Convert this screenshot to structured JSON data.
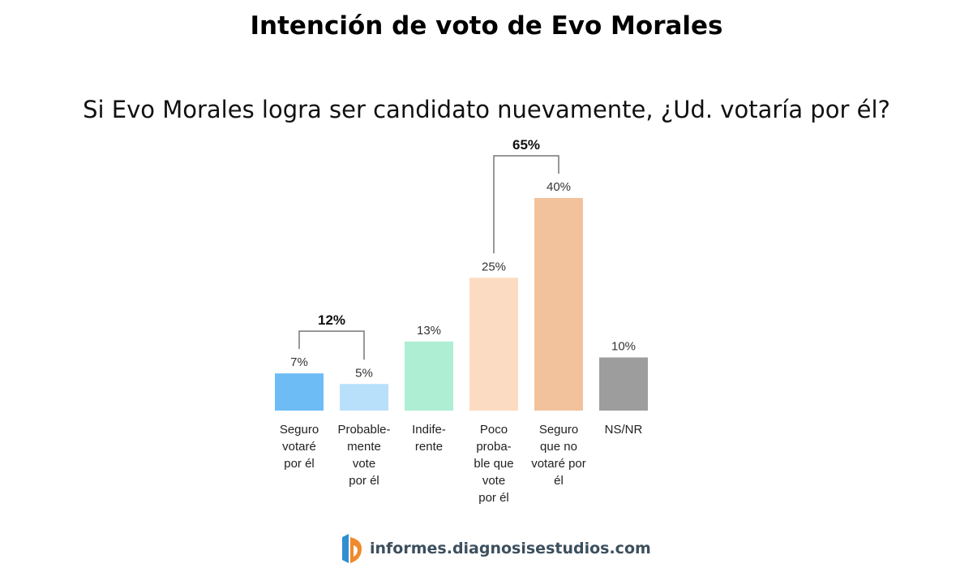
{
  "title": "Intención de voto de Evo Morales",
  "subtitle": "Si Evo Morales logra ser candidato nuevamente, ¿Ud. votaría por él?",
  "chart_data": {
    "type": "bar",
    "categories": [
      [
        "Seguro",
        "votaré",
        "por él"
      ],
      [
        "Probable-",
        "mente",
        "vote",
        "por él"
      ],
      [
        "Indife-",
        "rente"
      ],
      [
        "Poco",
        "proba-",
        "ble que",
        "vote",
        "por él"
      ],
      [
        "Seguro",
        "que no",
        "votaré por",
        "él"
      ],
      [
        "NS/NR"
      ]
    ],
    "values": [
      7,
      5,
      13,
      25,
      40,
      10
    ],
    "value_labels": [
      "7%",
      "5%",
      "13%",
      "25%",
      "40%",
      "10%"
    ],
    "colors": [
      "#6ebcf5",
      "#b8e0fb",
      "#aeefd3",
      "#fbdcc2",
      "#f2c29c",
      "#9d9d9d"
    ],
    "ylim": [
      0,
      40
    ],
    "grid": false,
    "brackets": [
      {
        "from": 0,
        "to": 1,
        "label": "12%"
      },
      {
        "from": 3,
        "to": 4,
        "label": "65%"
      }
    ]
  },
  "footer": {
    "logo_icon": "diagnosis-logo-icon",
    "text": "informes.diagnosisestudios.com"
  }
}
